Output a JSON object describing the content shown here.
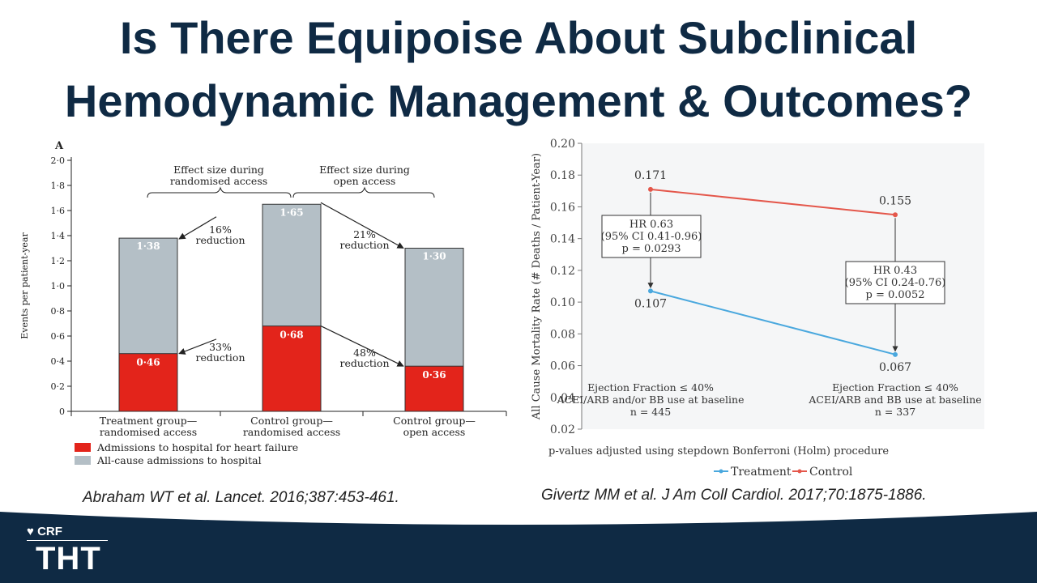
{
  "title": {
    "line1": "Is There Equipoise About Subclinical",
    "line2": "Hemodynamic Management & Outcomes?"
  },
  "citations": {
    "left": "Abraham WT et al. Lancet. 2016;387:453-461.",
    "right": "Givertz MM et al. J Am Coll Cardiol. 2017;70:1875-1886."
  },
  "logo": {
    "brand": "CRF",
    "mark": "THT"
  },
  "colors": {
    "title": "#0f2a44",
    "red_bar": "#e3241b",
    "gray_bar": "#b4bfc6",
    "treatment": "#4aa8de",
    "control": "#e4574b",
    "footer": "#0f2a44"
  },
  "chart_data": [
    {
      "type": "bar",
      "panel_label": "A",
      "ylabel": "Events per patient-year",
      "ylim": [
        0,
        2.0
      ],
      "yticks": [
        "0",
        "0·2",
        "0·4",
        "0·6",
        "0·8",
        "1·0",
        "1·2",
        "1·4",
        "1·6",
        "1·8",
        "2·0"
      ],
      "categories": [
        [
          "Treatment group—",
          "randomised access"
        ],
        [
          "Control group—",
          "randomised access"
        ],
        [
          "Control group—",
          "open access"
        ]
      ],
      "series": [
        {
          "name": "All-cause admissions to hospital",
          "values": [
            1.38,
            1.65,
            1.3
          ],
          "labels": [
            "1·38",
            "1·65",
            "1·30"
          ]
        },
        {
          "name": "Admissions to hospital for heart failure",
          "values": [
            0.46,
            0.68,
            0.36
          ],
          "labels": [
            "0·46",
            "0·68",
            "0·36"
          ]
        }
      ],
      "legend": [
        "Admissions to hospital for heart failure",
        "All-cause admissions to hospital"
      ],
      "group_headers": [
        [
          "Effect size during",
          "randomised access"
        ],
        [
          "Effect size during",
          "open access"
        ]
      ],
      "annotations": [
        [
          "16%",
          "reduction"
        ],
        [
          "33%",
          "reduction"
        ],
        [
          "21%",
          "reduction"
        ],
        [
          "48%",
          "reduction"
        ]
      ]
    },
    {
      "type": "line",
      "ylabel": "All Cause Mortality Rate (# Deaths / Patient-Year)",
      "ylim": [
        0.02,
        0.2
      ],
      "yticks": [
        "0.02",
        "0.04",
        "0.06",
        "0.08",
        "0.10",
        "0.12",
        "0.14",
        "0.16",
        "0.18",
        "0.20"
      ],
      "categories": [
        [
          "Ejection Fraction ≤ 40%",
          "ACEI/ARB and/or BB use at baseline",
          "n = 445"
        ],
        [
          "Ejection Fraction ≤ 40%",
          "ACEI/ARB and BB use at baseline",
          "n = 337"
        ]
      ],
      "series": [
        {
          "name": "Treatment",
          "values": [
            0.107,
            0.067
          ],
          "labels": [
            "0.107",
            "0.067"
          ]
        },
        {
          "name": "Control",
          "values": [
            0.171,
            0.155
          ],
          "labels": [
            "0.171",
            "0.155"
          ]
        }
      ],
      "hr_boxes": [
        [
          "HR 0.63",
          "(95% CI 0.41-0.96)",
          "p = 0.0293"
        ],
        [
          "HR 0.43",
          "(95% CI 0.24-0.76)",
          "p = 0.0052"
        ]
      ],
      "footnote": "p-values adjusted using stepdown Bonferroni (Holm) procedure",
      "legend_position": "bottom"
    }
  ]
}
